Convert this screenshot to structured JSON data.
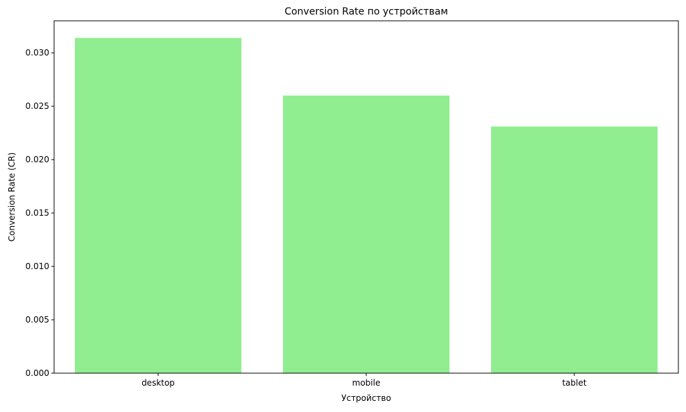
{
  "chart_data": {
    "type": "bar",
    "title": "Conversion Rate по устройствам",
    "xlabel": "Устройство",
    "ylabel": "Conversion Rate (CR)",
    "categories": [
      "desktop",
      "mobile",
      "tablet"
    ],
    "values": [
      0.0314,
      0.026,
      0.0231
    ],
    "ylim": [
      0,
      0.033
    ],
    "yticks": [
      "0.000",
      "0.005",
      "0.010",
      "0.015",
      "0.020",
      "0.025",
      "0.030"
    ],
    "bar_color": "#90ee90",
    "grid": false,
    "legend": "none"
  }
}
